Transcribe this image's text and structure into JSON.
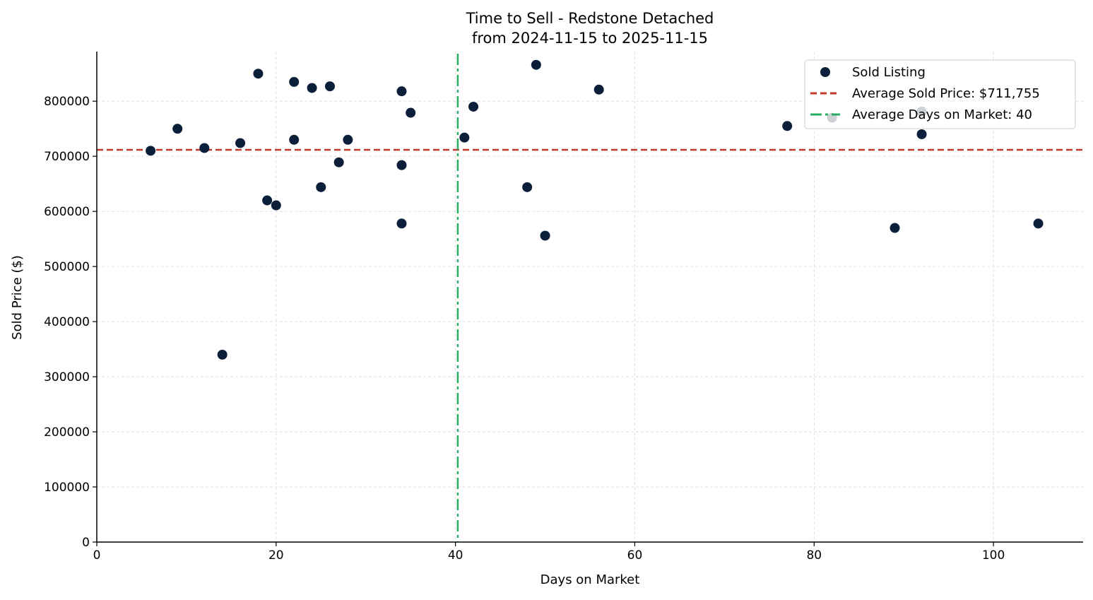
{
  "chart_data": {
    "type": "scatter",
    "title": "Time to Sell - Redstone Detached",
    "subtitle": "from 2024-11-15 to 2025-11-15",
    "xlabel": "Days on Market",
    "ylabel": "Sold Price ($)",
    "xlim": [
      0,
      110
    ],
    "ylim": [
      0,
      890000
    ],
    "xticks": [
      0,
      20,
      40,
      60,
      80,
      100
    ],
    "yticks": [
      0,
      100000,
      200000,
      300000,
      400000,
      500000,
      600000,
      700000,
      800000
    ],
    "grid": true,
    "legend_placement": "top-right",
    "legend": [
      {
        "label": "Sold Listing",
        "kind": "marker"
      },
      {
        "label": "Average Sold Price: $711,755",
        "kind": "dashed"
      },
      {
        "label": "Average Days on Market: 40",
        "kind": "dashdot"
      }
    ],
    "colors": {
      "points": "#0b1f3a",
      "avg_price": "#c0392b",
      "avg_days": "#27ae60",
      "grid": "#d9d9d9"
    },
    "series": [
      {
        "name": "Sold Listing",
        "x": [
          6,
          9,
          12,
          16,
          18,
          14,
          19,
          20,
          22,
          22,
          24,
          25,
          26,
          27,
          28,
          34,
          34,
          34,
          35,
          41,
          42,
          48,
          49,
          50,
          56,
          77,
          82,
          89,
          92,
          92,
          105
        ],
        "y": [
          710000,
          750000,
          715000,
          724000,
          850000,
          340000,
          620000,
          611000,
          835000,
          730000,
          824000,
          644000,
          827000,
          689000,
          730000,
          818000,
          684000,
          578000,
          779000,
          734000,
          790000,
          644000,
          866000,
          556000,
          821000,
          755000,
          770000,
          570000,
          781000,
          740000,
          578000
        ]
      }
    ]
  }
}
